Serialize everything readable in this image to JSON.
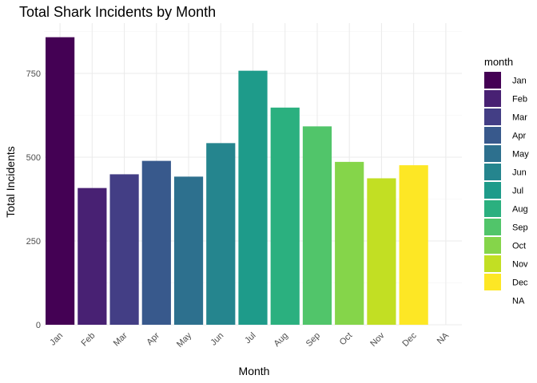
{
  "chart_data": {
    "type": "bar",
    "title": "Total Shark Incidents by Month",
    "xlabel": "Month",
    "ylabel": "Total Incidents",
    "categories": [
      "Jan",
      "Feb",
      "Mar",
      "Apr",
      "May",
      "Jun",
      "Jul",
      "Aug",
      "Sep",
      "Oct",
      "Nov",
      "Dec",
      "NA"
    ],
    "values": [
      858,
      408,
      449,
      489,
      442,
      542,
      758,
      648,
      592,
      486,
      437,
      476,
      null
    ],
    "ylim": [
      0,
      900
    ],
    "yticks": [
      0,
      250,
      500,
      750
    ],
    "grid": true,
    "legend": {
      "title": "month",
      "position": "right",
      "entries": [
        "Jan",
        "Feb",
        "Mar",
        "Apr",
        "May",
        "Jun",
        "Jul",
        "Aug",
        "Sep",
        "Oct",
        "Nov",
        "Dec",
        "NA"
      ]
    },
    "colors": [
      "#440154",
      "#482173",
      "#433E85",
      "#38598C",
      "#2D708E",
      "#25858E",
      "#1E9B8A",
      "#2BB07F",
      "#51C56A",
      "#85D54A",
      "#C2DF23",
      "#FDE725",
      "#00000000"
    ]
  }
}
